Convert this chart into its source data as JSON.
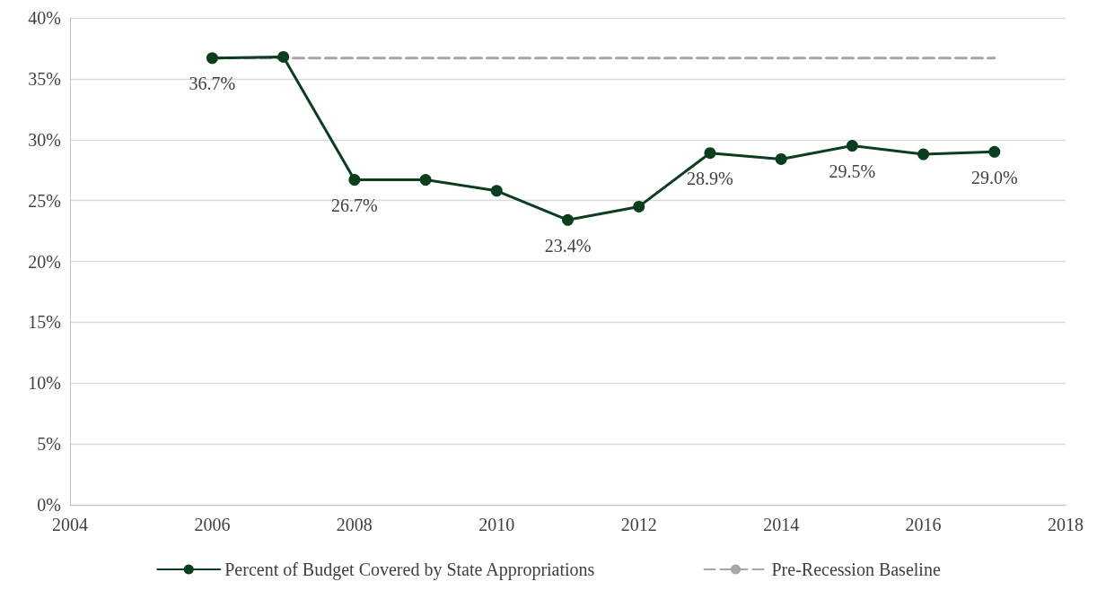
{
  "chart_data": {
    "type": "line",
    "xlim": [
      2004,
      2018
    ],
    "xticks": [
      2004,
      2006,
      2008,
      2010,
      2012,
      2014,
      2016,
      2018
    ],
    "ylim": [
      0,
      40
    ],
    "yticks": [
      {
        "value": 0,
        "label": "0%"
      },
      {
        "value": 5,
        "label": "5%"
      },
      {
        "value": 10,
        "label": "10%"
      },
      {
        "value": 15,
        "label": "15%"
      },
      {
        "value": 20,
        "label": "20%"
      },
      {
        "value": 25,
        "label": "25%"
      },
      {
        "value": 30,
        "label": "30%"
      },
      {
        "value": 35,
        "label": "35%"
      },
      {
        "value": 40,
        "label": "40%"
      }
    ],
    "grid": "y",
    "legend": "bottom",
    "series": [
      {
        "name": "Percent of Budget Covered by State Appropriations",
        "color": "#0b3d1f",
        "marker": "circle",
        "line_style": "solid",
        "x": [
          2006,
          2007,
          2008,
          2009,
          2010,
          2011,
          2012,
          2013,
          2014,
          2015,
          2016,
          2017
        ],
        "values": [
          36.7,
          36.8,
          26.7,
          26.7,
          25.8,
          23.4,
          24.5,
          28.9,
          28.4,
          29.5,
          28.8,
          29.0
        ],
        "value_labels": [
          "36.7%",
          null,
          "26.7%",
          null,
          null,
          "23.4%",
          null,
          "28.9%",
          null,
          "29.5%",
          null,
          "29.0%"
        ]
      },
      {
        "name": "Pre-Recession Baseline",
        "color": "#a6a6a6",
        "marker": "none",
        "line_style": "dashed",
        "x": [
          2006,
          2017
        ],
        "values": [
          36.7,
          36.7
        ]
      }
    ]
  }
}
